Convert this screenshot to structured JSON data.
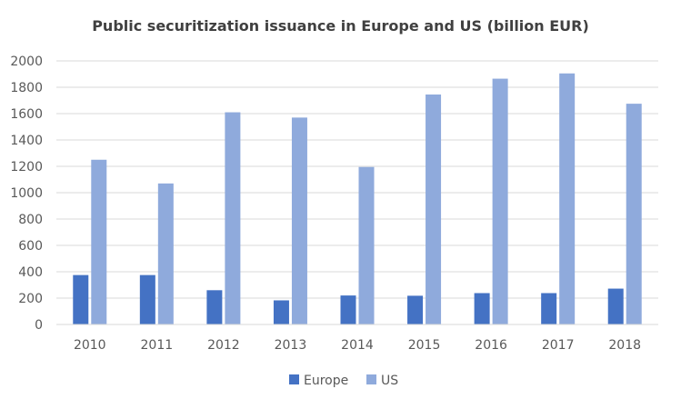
{
  "chart_data": {
    "type": "bar",
    "title": "Public securitization issuance in Europe and US (billion EUR)",
    "categories": [
      "2010",
      "2011",
      "2012",
      "2013",
      "2014",
      "2015",
      "2016",
      "2017",
      "2018"
    ],
    "series": [
      {
        "name": "Europe",
        "color": "#4472c4",
        "values": [
          375,
          375,
          260,
          183,
          220,
          218,
          238,
          238,
          272
        ]
      },
      {
        "name": "US",
        "color": "#8faadc",
        "values": [
          1250,
          1070,
          1610,
          1570,
          1195,
          1745,
          1865,
          1905,
          1675
        ]
      }
    ],
    "xlabel": "",
    "ylabel": "",
    "ylim": [
      0,
      2000
    ],
    "yticks": [
      0,
      200,
      400,
      600,
      800,
      1000,
      1200,
      1400,
      1600,
      1800,
      2000
    ],
    "grid": true,
    "legend_position": "bottom"
  }
}
